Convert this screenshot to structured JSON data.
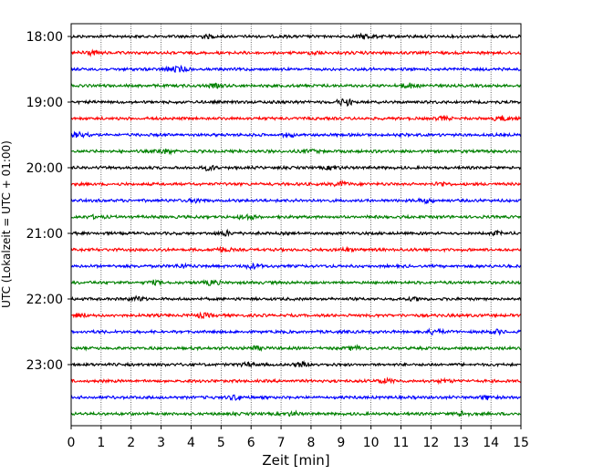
{
  "chart_data": {
    "type": "line",
    "title": "",
    "xlabel": "Zeit  [min]",
    "ylabel": "UTC (Lokalzeit = UTC + 01:00)",
    "xlim": [
      0,
      15
    ],
    "x_ticks": [
      0,
      1,
      2,
      3,
      4,
      5,
      6,
      7,
      8,
      9,
      10,
      11,
      12,
      13,
      14,
      15
    ],
    "y_ticks": [
      "18:00",
      "19:00",
      "20:00",
      "21:00",
      "22:00",
      "23:00"
    ],
    "trace_interval_min": 15,
    "start_time": "18:00",
    "trace_colors": [
      "#000000",
      "#ff0000",
      "#0000ff",
      "#008000"
    ],
    "grid": "vertical dotted",
    "legend": "none",
    "series": [
      {
        "start": "18:00",
        "color": "#000000"
      },
      {
        "start": "18:15",
        "color": "#ff0000"
      },
      {
        "start": "18:30",
        "color": "#0000ff"
      },
      {
        "start": "18:45",
        "color": "#008000"
      },
      {
        "start": "19:00",
        "color": "#000000"
      },
      {
        "start": "19:15",
        "color": "#ff0000"
      },
      {
        "start": "19:30",
        "color": "#0000ff"
      },
      {
        "start": "19:45",
        "color": "#008000"
      },
      {
        "start": "20:00",
        "color": "#000000"
      },
      {
        "start": "20:15",
        "color": "#ff0000"
      },
      {
        "start": "20:30",
        "color": "#0000ff"
      },
      {
        "start": "20:45",
        "color": "#008000"
      },
      {
        "start": "21:00",
        "color": "#000000"
      },
      {
        "start": "21:15",
        "color": "#ff0000"
      },
      {
        "start": "21:30",
        "color": "#0000ff"
      },
      {
        "start": "21:45",
        "color": "#008000"
      },
      {
        "start": "22:00",
        "color": "#000000"
      },
      {
        "start": "22:15",
        "color": "#ff0000"
      },
      {
        "start": "22:30",
        "color": "#0000ff"
      },
      {
        "start": "22:45",
        "color": "#008000"
      },
      {
        "start": "23:00",
        "color": "#000000"
      },
      {
        "start": "23:15",
        "color": "#ff0000"
      },
      {
        "start": "23:30",
        "color": "#0000ff"
      },
      {
        "start": "23:45",
        "color": "#008000"
      }
    ]
  }
}
